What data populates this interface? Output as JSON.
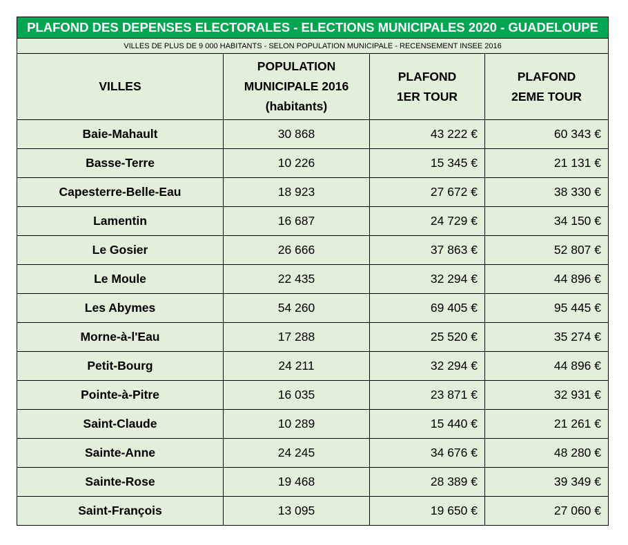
{
  "title": "PLAFOND DES DEPENSES ELECTORALES  - ELECTIONS MUNICIPALES 2020 - GUADELOUPE",
  "subtitle": "VILLES DE PLUS DE 9 000 HABITANTS - SELON POPULATION MUNICIPALE - RECENSEMENT INSEE 2016",
  "headers": {
    "villes": "VILLES",
    "population_l1": "POPULATION",
    "population_l2": "MUNICIPALE 2016",
    "population_l3": "(habitants)",
    "tour1_l1": "PLAFOND",
    "tour1_l2": "1ER TOUR",
    "tour2_l1": "PLAFOND",
    "tour2_l2": "2EME TOUR"
  },
  "rows": [
    {
      "ville": "Baie-Mahault",
      "population": "30 868",
      "tour1": "43 222 €",
      "tour2": "60 343 €"
    },
    {
      "ville": "Basse-Terre",
      "population": "10 226",
      "tour1": "15 345 €",
      "tour2": "21 131 €"
    },
    {
      "ville": "Capesterre-Belle-Eau",
      "population": "18 923",
      "tour1": "27 672 €",
      "tour2": "38 330 €"
    },
    {
      "ville": "Lamentin",
      "population": "16 687",
      "tour1": "24 729 €",
      "tour2": "34 150 €"
    },
    {
      "ville": "Le Gosier",
      "population": "26 666",
      "tour1": "37 863 €",
      "tour2": "52 807 €"
    },
    {
      "ville": "Le Moule",
      "population": "22 435",
      "tour1": "32 294 €",
      "tour2": "44 896 €"
    },
    {
      "ville": "Les Abymes",
      "population": "54 260",
      "tour1": "69 405 €",
      "tour2": "95 445 €"
    },
    {
      "ville": "Morne-à-l'Eau",
      "population": "17 288",
      "tour1": "25 520 €",
      "tour2": "35 274 €"
    },
    {
      "ville": "Petit-Bourg",
      "population": "24 211",
      "tour1": "32 294 €",
      "tour2": "44 896 €"
    },
    {
      "ville": "Pointe-à-Pitre",
      "population": "16 035",
      "tour1": "23 871 €",
      "tour2": "32 931 €"
    },
    {
      "ville": "Saint-Claude",
      "population": "10 289",
      "tour1": "15 440 €",
      "tour2": "21 261 €"
    },
    {
      "ville": "Sainte-Anne",
      "population": "24 245",
      "tour1": "34 676 €",
      "tour2": "48 280 €"
    },
    {
      "ville": "Sainte-Rose",
      "population": "19 468",
      "tour1": "28 389 €",
      "tour2": "39 349 €"
    },
    {
      "ville": "Saint-François",
      "population": "13 095",
      "tour1": "19 650 €",
      "tour2": "27 060 €"
    }
  ],
  "colors": {
    "title_bg": "#00a651",
    "cell_bg": "#e2efda"
  }
}
